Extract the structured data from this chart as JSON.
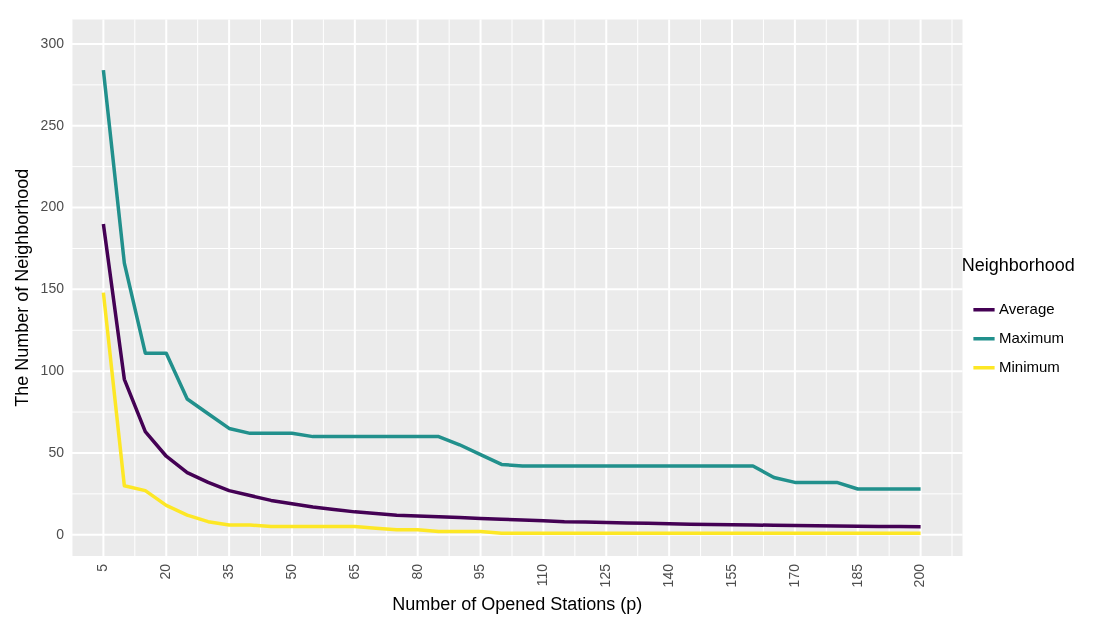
{
  "chart_data": {
    "type": "line",
    "xlabel": "Number of Opened Stations (p)",
    "ylabel": "The Number of Neighborhood",
    "legend_title": "Neighborhood",
    "x": [
      5,
      10,
      15,
      20,
      25,
      30,
      35,
      40,
      45,
      50,
      55,
      60,
      65,
      70,
      75,
      80,
      85,
      90,
      95,
      100,
      105,
      110,
      115,
      120,
      125,
      130,
      135,
      140,
      145,
      150,
      155,
      160,
      165,
      170,
      175,
      180,
      185,
      190,
      195,
      200
    ],
    "series": [
      {
        "name": "Average",
        "color": "#440154",
        "values": [
          190,
          95,
          63,
          48,
          38,
          32,
          27,
          24,
          21,
          19,
          17,
          15.5,
          14,
          13,
          12,
          11.5,
          11,
          10.5,
          10,
          9.5,
          9,
          8.5,
          8,
          7.8,
          7.5,
          7.2,
          7,
          6.8,
          6.5,
          6.3,
          6.1,
          6,
          5.8,
          5.6,
          5.5,
          5.3,
          5.2,
          5.1,
          5,
          4.9
        ]
      },
      {
        "name": "Maximum",
        "color": "#21908c",
        "values": [
          284,
          166,
          111,
          111,
          83,
          74,
          65,
          62,
          62,
          62,
          60,
          60,
          60,
          60,
          60,
          60,
          60,
          55,
          49,
          43,
          42,
          42,
          42,
          42,
          42,
          42,
          42,
          42,
          42,
          42,
          42,
          42,
          35,
          32,
          32,
          32,
          28,
          28,
          28,
          28
        ]
      },
      {
        "name": "Minimum",
        "color": "#fde725",
        "values": [
          148,
          30,
          27,
          18,
          12,
          8,
          6,
          6,
          5,
          5,
          5,
          5,
          5,
          4,
          3,
          3,
          2,
          2,
          2,
          1,
          1,
          1,
          1,
          1,
          1,
          1,
          1,
          1,
          1,
          1,
          1,
          1,
          1,
          1,
          1,
          1,
          1,
          1,
          1,
          1
        ]
      }
    ],
    "xlim": [
      -2.5,
      210
    ],
    "xticks": [
      5,
      20,
      35,
      50,
      65,
      80,
      95,
      110,
      125,
      140,
      155,
      170,
      185,
      200
    ],
    "ylim": [
      -13,
      315
    ],
    "yticks": [
      0,
      50,
      100,
      150,
      200,
      250,
      300
    ],
    "grid": true,
    "legend": "right",
    "marker": "none",
    "line_style": "solid"
  }
}
